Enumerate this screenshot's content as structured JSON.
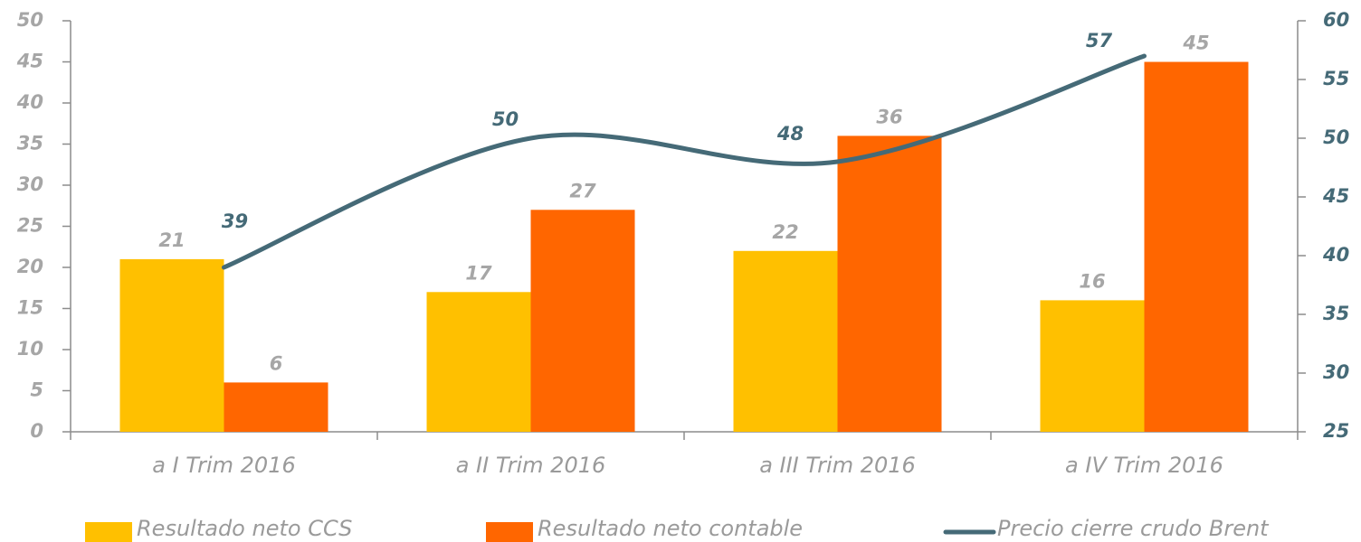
{
  "chart_data": {
    "type": "bar",
    "categories": [
      "a I Trim 2016",
      "a II Trim 2016",
      "a III Trim 2016",
      "a IV Trim 2016"
    ],
    "series": [
      {
        "name": "Resultado neto CCS",
        "type": "bar",
        "color": "#ffc000",
        "values": [
          21,
          17,
          22,
          16
        ]
      },
      {
        "name": "Resultado neto contable",
        "type": "bar",
        "color": "#ff6600",
        "values": [
          6,
          27,
          36,
          45
        ]
      },
      {
        "name": "Precio cierre crudo Brent",
        "type": "line",
        "axis": "y2",
        "color": "#456a77",
        "values": [
          39,
          50,
          48,
          57
        ]
      }
    ],
    "ylim": [
      0,
      50
    ],
    "yticks": [
      0,
      5,
      10,
      15,
      20,
      25,
      30,
      35,
      40,
      45,
      50
    ],
    "y2lim": [
      25,
      60
    ],
    "y2ticks": [
      25,
      30,
      35,
      40,
      45,
      50,
      55,
      60
    ],
    "grid": false,
    "legend": "bottom"
  }
}
